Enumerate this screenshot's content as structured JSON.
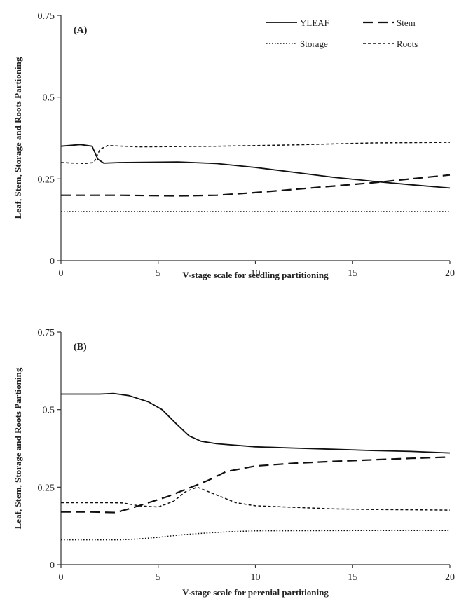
{
  "chart_data": [
    {
      "type": "line",
      "panel_label": "(A)",
      "xlabel": "V-stage scale for seedling partitioning",
      "ylabel": "Leaf, Stem, Storage and Roots Partioning",
      "xlim": [
        0,
        20
      ],
      "ylim": [
        0,
        0.75
      ],
      "xticks": [
        "0",
        "5",
        "10",
        "15",
        "20"
      ],
      "yticks": [
        "0",
        "0.25",
        "0.5",
        "0.75"
      ],
      "legend": "top-right",
      "grid": false,
      "series": [
        {
          "name": "YLEAF",
          "style": "solid",
          "x": [
            0,
            1,
            1.6,
            1.9,
            2.2,
            3,
            6,
            8,
            10,
            12,
            14,
            16,
            18,
            20
          ],
          "y": [
            0.35,
            0.355,
            0.35,
            0.31,
            0.298,
            0.3,
            0.302,
            0.297,
            0.285,
            0.27,
            0.255,
            0.243,
            0.232,
            0.222
          ]
        },
        {
          "name": "Stem",
          "style": "long-dash",
          "x": [
            0,
            3,
            6,
            8,
            10,
            12,
            14,
            16,
            18,
            20
          ],
          "y": [
            0.2,
            0.2,
            0.198,
            0.2,
            0.208,
            0.218,
            0.228,
            0.238,
            0.25,
            0.262
          ]
        },
        {
          "name": "Storage",
          "style": "dotted",
          "x": [
            0,
            5,
            10,
            15,
            20
          ],
          "y": [
            0.15,
            0.15,
            0.15,
            0.15,
            0.15
          ]
        },
        {
          "name": "Roots",
          "style": "short-dash",
          "x": [
            0,
            1.2,
            1.7,
            2,
            2.4,
            4,
            8,
            12,
            16,
            20
          ],
          "y": [
            0.3,
            0.297,
            0.3,
            0.34,
            0.352,
            0.348,
            0.35,
            0.354,
            0.36,
            0.362
          ]
        }
      ]
    },
    {
      "type": "line",
      "panel_label": "(B)",
      "xlabel": "V-stage scale for perenial partitioning",
      "ylabel": "Leaf, Stem, Storage and Roots Partioning",
      "xlim": [
        0,
        20
      ],
      "ylim": [
        0,
        0.75
      ],
      "xticks": [
        "0",
        "5",
        "10",
        "15",
        "20"
      ],
      "yticks": [
        "0",
        "0.25",
        "0.5",
        "0.75"
      ],
      "legend": "none",
      "grid": false,
      "series": [
        {
          "name": "YLEAF",
          "style": "solid",
          "x": [
            0,
            2,
            2.7,
            3.5,
            4.5,
            5.2,
            6,
            6.6,
            7.2,
            8,
            10,
            12,
            14,
            16,
            18,
            20
          ],
          "y": [
            0.55,
            0.55,
            0.552,
            0.545,
            0.525,
            0.5,
            0.45,
            0.415,
            0.398,
            0.39,
            0.38,
            0.376,
            0.372,
            0.368,
            0.365,
            0.36
          ]
        },
        {
          "name": "Stem",
          "style": "long-dash",
          "x": [
            0,
            1.5,
            2.8,
            3.5,
            4.5,
            5.5,
            6.5,
            7.5,
            8.5,
            10,
            12,
            14,
            16,
            18,
            20
          ],
          "y": [
            0.17,
            0.17,
            0.168,
            0.18,
            0.2,
            0.22,
            0.245,
            0.27,
            0.3,
            0.318,
            0.327,
            0.333,
            0.338,
            0.343,
            0.347
          ]
        },
        {
          "name": "Storage",
          "style": "dotted",
          "x": [
            0,
            3,
            4,
            5,
            6,
            7,
            8,
            9,
            10,
            15,
            20
          ],
          "y": [
            0.08,
            0.08,
            0.083,
            0.088,
            0.095,
            0.1,
            0.104,
            0.107,
            0.109,
            0.11,
            0.11
          ]
        },
        {
          "name": "Roots",
          "style": "short-dash",
          "x": [
            0,
            2.5,
            3.2,
            4,
            5,
            5.8,
            6.4,
            7,
            7.8,
            9,
            10,
            12,
            14,
            16,
            18,
            20
          ],
          "y": [
            0.2,
            0.2,
            0.199,
            0.19,
            0.186,
            0.205,
            0.235,
            0.25,
            0.23,
            0.2,
            0.19,
            0.185,
            0.18,
            0.178,
            0.177,
            0.176
          ]
        }
      ]
    }
  ],
  "legend_items": [
    {
      "name": "YLEAF",
      "style": "solid"
    },
    {
      "name": "Stem",
      "style": "long-dash"
    },
    {
      "name": "Storage",
      "style": "dotted"
    },
    {
      "name": "Roots",
      "style": "short-dash"
    }
  ]
}
